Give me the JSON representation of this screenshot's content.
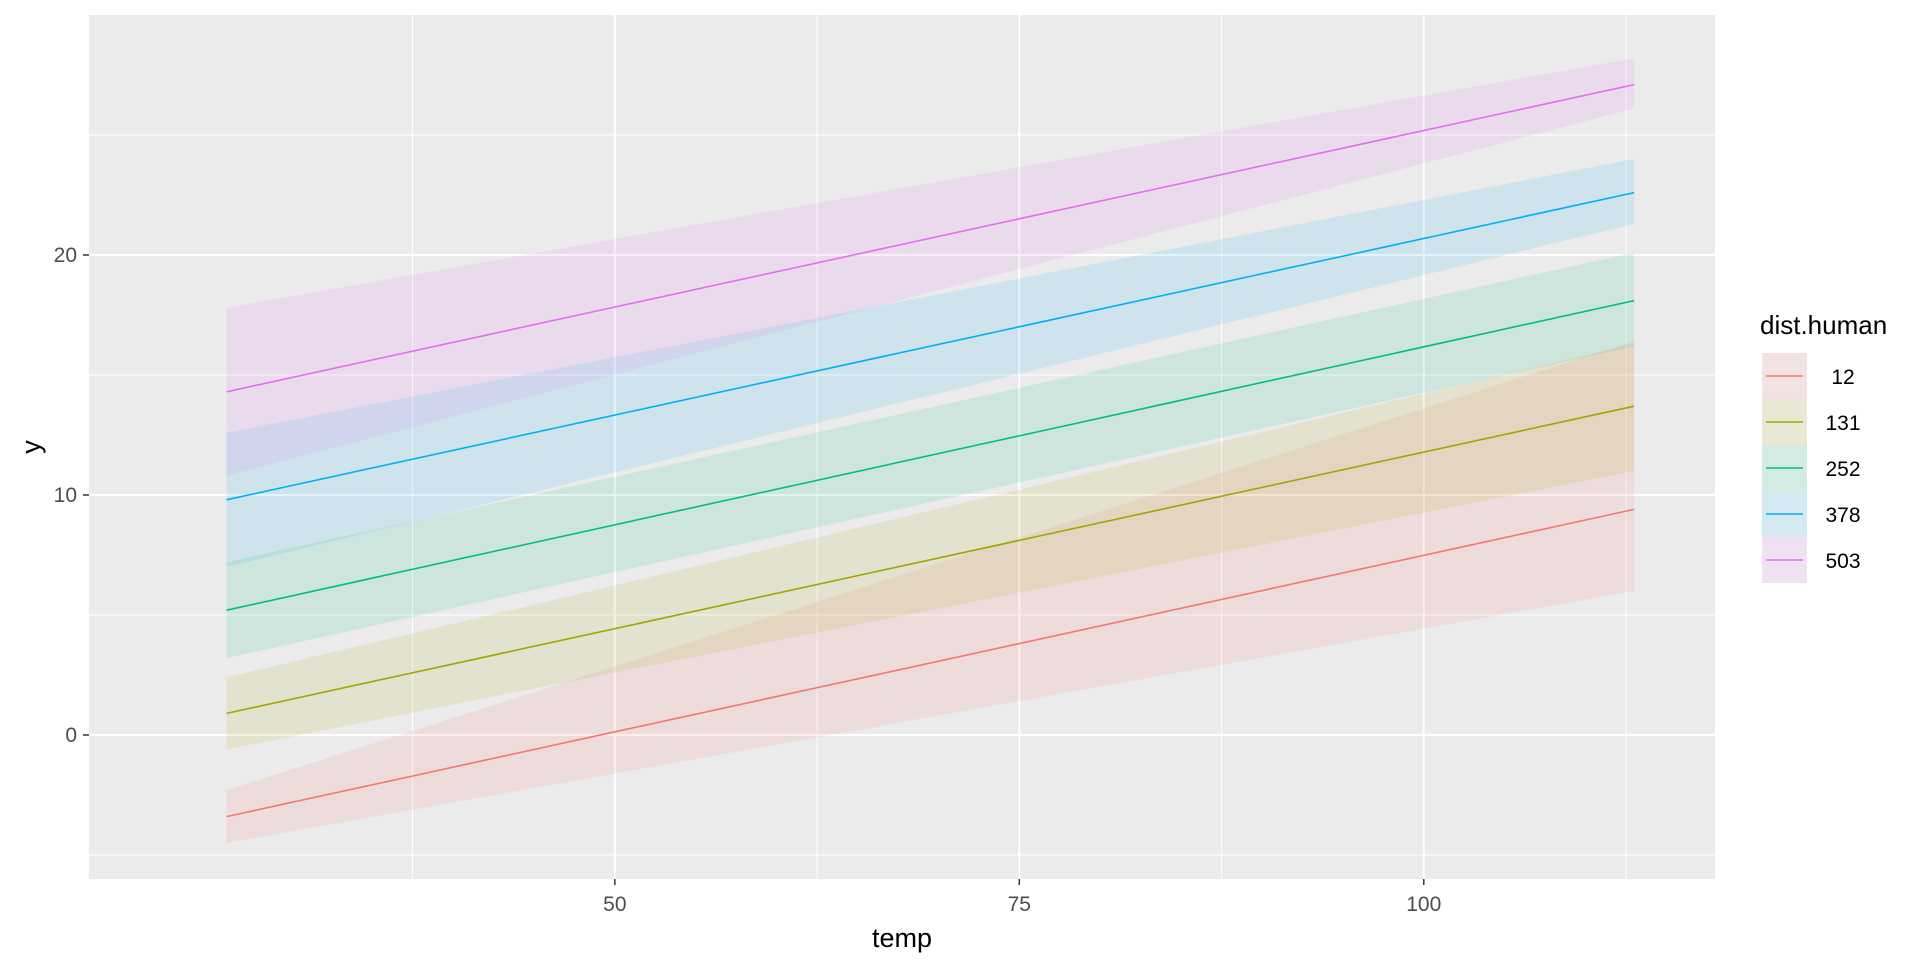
{
  "chart_data": {
    "type": "line",
    "xlabel": "temp",
    "ylabel": "y",
    "xlim": [
      17.5,
      118
    ],
    "ylim": [
      -6,
      30
    ],
    "x_ticks": [
      50,
      75,
      100
    ],
    "x_tick_labels": [
      "50",
      "75",
      "100"
    ],
    "y_ticks": [
      0,
      10,
      20
    ],
    "y_tick_labels": [
      "0",
      "10",
      "20"
    ],
    "x_minor_ticks": [
      37.5,
      62.5,
      87.5,
      112.5
    ],
    "y_minor_ticks": [
      -5,
      5,
      15,
      25
    ],
    "grid": true,
    "legend": {
      "title": "dist.human",
      "position": "right"
    },
    "series": [
      {
        "name": "12",
        "color": "#F8766D",
        "x": [
          26,
          113
        ],
        "y": [
          -3.4,
          9.4
        ],
        "lower": [
          -4.5,
          6.0
        ],
        "upper": [
          -2.3,
          16.4
        ]
      },
      {
        "name": "131",
        "color": "#A3A500",
        "x": [
          26,
          113
        ],
        "y": [
          0.9,
          13.7
        ],
        "lower": [
          -0.6,
          11.0
        ],
        "upper": [
          2.4,
          16.3
        ]
      },
      {
        "name": "252",
        "color": "#00BF7D",
        "x": [
          26,
          113
        ],
        "y": [
          5.2,
          18.1
        ],
        "lower": [
          3.2,
          16.2
        ],
        "upper": [
          7.2,
          20.1
        ]
      },
      {
        "name": "378",
        "color": "#00B0F6",
        "x": [
          26,
          113
        ],
        "y": [
          9.8,
          22.6
        ],
        "lower": [
          7.0,
          21.3
        ],
        "upper": [
          12.6,
          24.0
        ]
      },
      {
        "name": "503",
        "color": "#E76BF3",
        "x": [
          26,
          113
        ],
        "y": [
          14.3,
          27.1
        ],
        "lower": [
          10.8,
          26.1
        ],
        "upper": [
          17.8,
          28.2
        ]
      }
    ]
  }
}
